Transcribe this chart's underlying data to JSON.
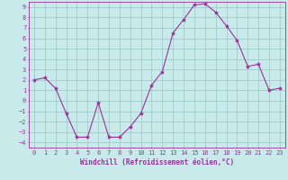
{
  "x": [
    0,
    1,
    2,
    3,
    4,
    5,
    6,
    7,
    8,
    9,
    10,
    11,
    12,
    13,
    14,
    15,
    16,
    17,
    18,
    19,
    20,
    21,
    22,
    23
  ],
  "y": [
    2,
    2.2,
    1.2,
    -1.2,
    -3.5,
    -3.5,
    -0.2,
    -3.5,
    -3.5,
    -2.5,
    -1.2,
    1.5,
    2.8,
    6.5,
    7.8,
    9.2,
    9.3,
    8.5,
    7.2,
    5.8,
    3.3,
    3.5,
    1.0,
    1.2
  ],
  "line_color": "#993399",
  "marker": "*",
  "marker_size": 3,
  "bg_color": "#c8eaea",
  "grid_color": "#a0cccc",
  "xlabel": "Windchill (Refroidissement éolien,°C)",
  "xlabel_fontsize": 5.5,
  "tick_fontsize": 5,
  "xlim": [
    -0.5,
    23.5
  ],
  "ylim": [
    -4.5,
    9.5
  ],
  "yticks": [
    -4,
    -3,
    -2,
    -1,
    0,
    1,
    2,
    3,
    4,
    5,
    6,
    7,
    8,
    9
  ],
  "xticks": [
    0,
    1,
    2,
    3,
    4,
    5,
    6,
    7,
    8,
    9,
    10,
    11,
    12,
    13,
    14,
    15,
    16,
    17,
    18,
    19,
    20,
    21,
    22,
    23
  ],
  "spine_color": "#993399",
  "label_color": "#993399",
  "line_width": 0.8
}
